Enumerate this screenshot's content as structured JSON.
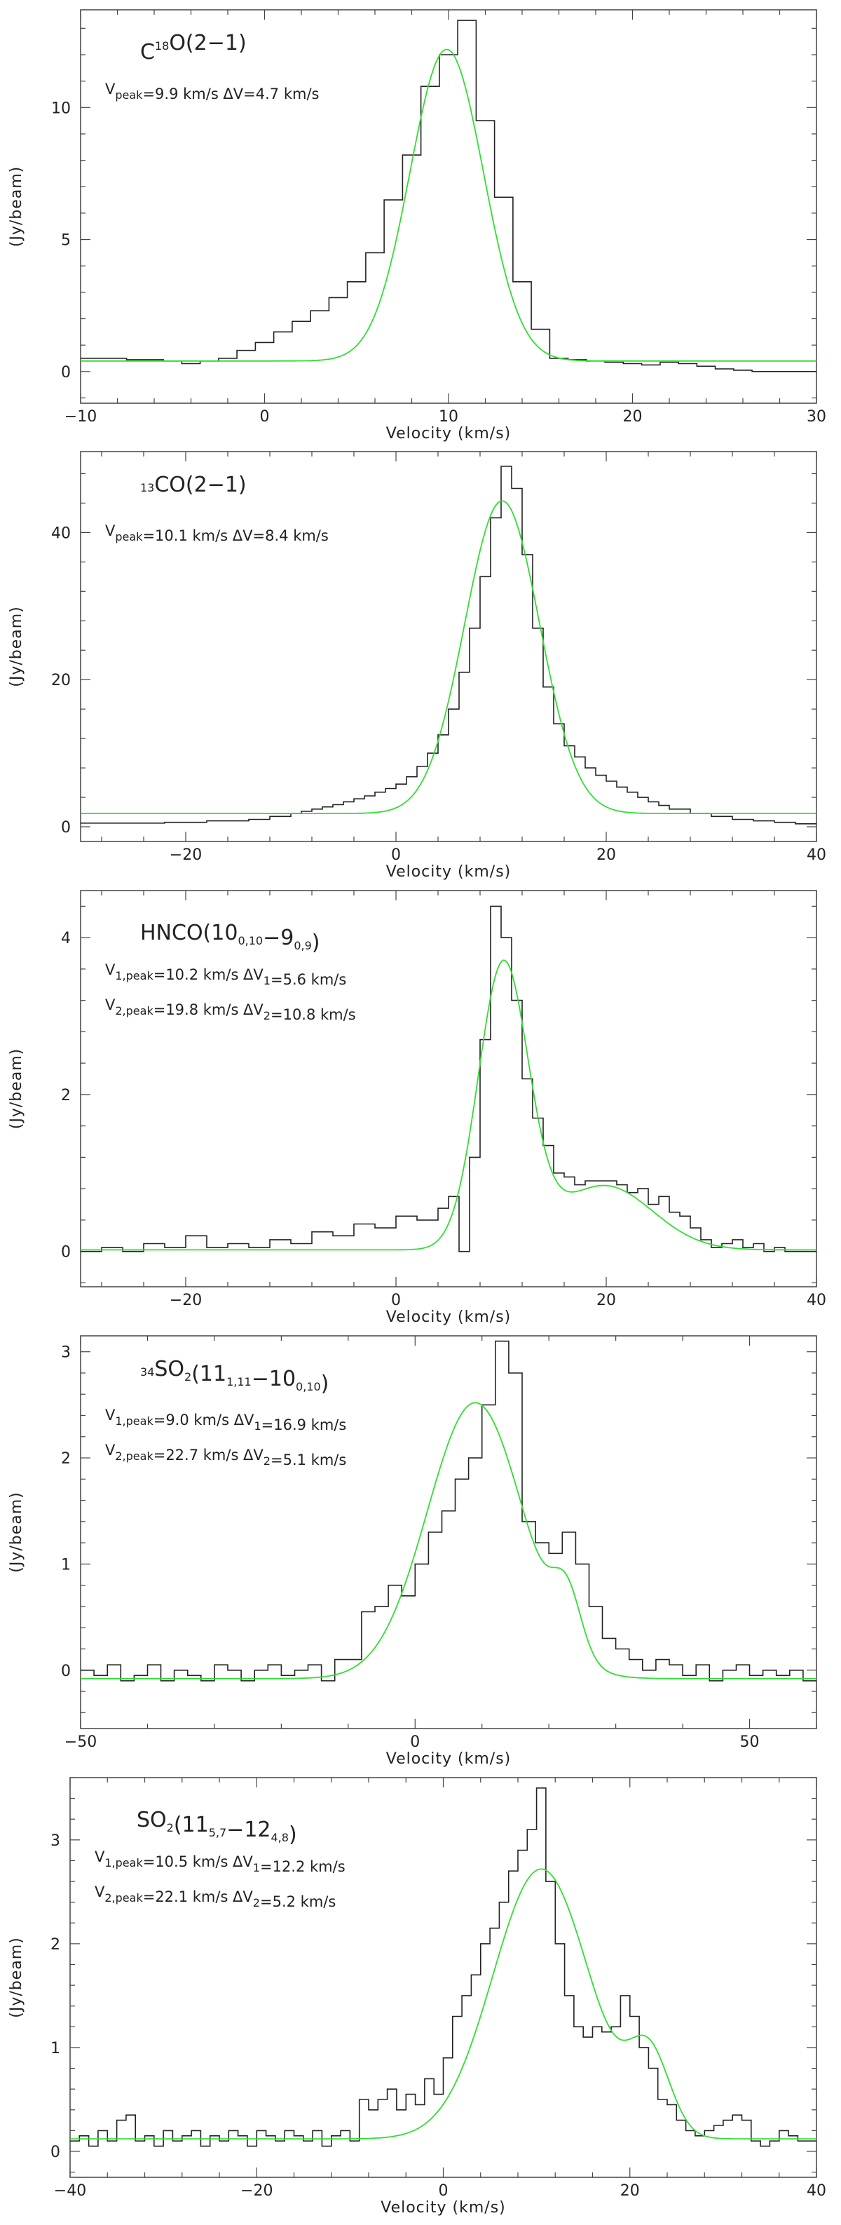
{
  "figure": {
    "xlabel": "Velocity (km/s)",
    "ylabel": "(Jy/beam)"
  },
  "chart_data": [
    {
      "type": "line",
      "title_parts": [
        [
          "",
          "C"
        ],
        [
          "sup",
          "18"
        ],
        [
          "",
          "O(2−1)"
        ]
      ],
      "params": [
        [
          [
            "",
            "V"
          ],
          [
            "sub",
            "peak"
          ],
          [
            "",
            "=9.9  km/s   ΔV=4.7  km/s"
          ]
        ]
      ],
      "xlim": [
        -10,
        30
      ],
      "ylim": [
        -1.2,
        13.7
      ],
      "xticks": [
        -10,
        0,
        10,
        20,
        30
      ],
      "yticks": [
        0,
        5,
        10
      ],
      "observed_step": {
        "x": [
          -10.5,
          -9.5,
          -8.5,
          -7.5,
          -6.5,
          -5.5,
          -4.5,
          -3.5,
          -2.5,
          -1.5,
          -0.5,
          0.5,
          1.5,
          2.5,
          3.5,
          4.5,
          5.5,
          6.5,
          7.5,
          8.5,
          9.5,
          10.5,
          11.5,
          12.5,
          13.5,
          14.5,
          15.5,
          16.5,
          17.5,
          18.5,
          19.5,
          20.5,
          21.5,
          22.5,
          23.5,
          24.5,
          25.5,
          26.5,
          27.5,
          28.5,
          29.5
        ],
        "y": [
          0.5,
          0.5,
          0.5,
          0.45,
          0.45,
          0.4,
          0.3,
          0.4,
          0.5,
          0.8,
          1.1,
          1.5,
          1.9,
          2.3,
          2.8,
          3.4,
          4.5,
          6.5,
          8.2,
          10.8,
          12.0,
          13.3,
          9.5,
          6.6,
          3.4,
          1.6,
          0.5,
          0.45,
          0.4,
          0.35,
          0.3,
          0.25,
          0.35,
          0.3,
          0.2,
          0.1,
          0.05,
          0.0,
          0.0,
          0.0,
          0.0
        ]
      },
      "fit": {
        "components": [
          {
            "amplitude": 11.8,
            "center": 9.9,
            "fwhm": 4.7
          }
        ],
        "baseline": 0.4
      }
    },
    {
      "type": "line",
      "title_parts": [
        [
          "sup",
          "13"
        ],
        [
          "",
          "CO(2−1)"
        ]
      ],
      "params": [
        [
          [
            "",
            "V"
          ],
          [
            "sub",
            "peak"
          ],
          [
            "",
            "=10.1  km/s   ΔV=8.4  km/s"
          ]
        ]
      ],
      "xlim": [
        -30,
        40
      ],
      "ylim": [
        -2,
        51
      ],
      "xticks": [
        -20,
        0,
        20,
        40
      ],
      "yticks": [
        0,
        20,
        40
      ],
      "observed_step": {
        "x": [
          -30,
          -26,
          -22,
          -18,
          -14,
          -12,
          -10,
          -9,
          -8,
          -7,
          -6,
          -5,
          -4,
          -3,
          -2,
          -1,
          0,
          1,
          2,
          3,
          4,
          5,
          6,
          7,
          8,
          9,
          10,
          11,
          12,
          13,
          14,
          15,
          16,
          17,
          18,
          19,
          20,
          21,
          22,
          23,
          24,
          25,
          26,
          28,
          30,
          32,
          34,
          36,
          38,
          40
        ],
        "y": [
          0.5,
          0.5,
          0.6,
          0.8,
          1.0,
          1.4,
          1.8,
          2.1,
          2.4,
          2.7,
          3.0,
          3.4,
          3.8,
          4.2,
          4.7,
          5.2,
          5.8,
          6.8,
          8.2,
          10.0,
          12.5,
          16.0,
          21.0,
          27.0,
          34.0,
          42.0,
          49.0,
          46.0,
          37.0,
          27.0,
          19.0,
          14.0,
          11.0,
          9.5,
          8.0,
          7.0,
          6.2,
          5.4,
          4.7,
          4.0,
          3.4,
          2.9,
          2.4,
          1.8,
          1.4,
          1.0,
          0.8,
          0.6,
          0.4,
          0.3
        ]
      },
      "fit": {
        "components": [
          {
            "amplitude": 42.5,
            "center": 10.1,
            "fwhm": 8.4
          }
        ],
        "baseline": 1.8
      }
    },
    {
      "type": "line",
      "title_parts": [
        [
          "",
          "HNCO(10"
        ],
        [
          "sub",
          "0,10"
        ],
        [
          "",
          "−9"
        ],
        [
          "sub",
          "0,9"
        ],
        [
          "",
          ")"
        ]
      ],
      "params": [
        [
          [
            "",
            "V"
          ],
          [
            "sub",
            "1,peak"
          ],
          [
            "",
            "=10.2  km/s   ΔV"
          ],
          [
            "sub",
            "1"
          ],
          [
            "",
            "=5.6  km/s"
          ]
        ],
        [
          [
            "",
            "V"
          ],
          [
            "sub",
            "2,peak"
          ],
          [
            "",
            "=19.8  km/s   ΔV"
          ],
          [
            "sub",
            "2"
          ],
          [
            "",
            "=10.8  km/s"
          ]
        ]
      ],
      "xlim": [
        -30,
        40
      ],
      "ylim": [
        -0.45,
        4.6
      ],
      "xticks": [
        -20,
        0,
        20,
        40
      ],
      "yticks": [
        0,
        2,
        4
      ],
      "observed_step": {
        "x": [
          -30,
          -28,
          -26,
          -24,
          -22,
          -20,
          -18,
          -16,
          -14,
          -12,
          -10,
          -8,
          -6,
          -4,
          -2,
          0,
          2,
          4,
          5,
          6,
          7,
          8,
          9,
          10,
          11,
          12,
          13,
          14,
          15,
          16,
          17,
          18,
          19,
          20,
          21,
          22,
          23,
          24,
          25,
          26,
          27,
          28,
          29,
          30,
          31,
          32,
          33,
          34,
          35,
          36,
          37,
          38,
          39
        ],
        "y": [
          0.0,
          0.05,
          0.0,
          0.1,
          0.05,
          0.2,
          0.05,
          0.1,
          0.05,
          0.15,
          0.1,
          0.25,
          0.2,
          0.35,
          0.3,
          0.45,
          0.4,
          0.55,
          0.7,
          0.0,
          1.2,
          2.7,
          4.4,
          4.0,
          3.2,
          2.2,
          1.7,
          1.35,
          1.0,
          0.95,
          0.85,
          0.9,
          0.9,
          0.9,
          0.85,
          0.75,
          0.8,
          0.6,
          0.7,
          0.5,
          0.45,
          0.3,
          0.15,
          0.05,
          0.1,
          0.15,
          0.05,
          0.1,
          0.0,
          0.05,
          0.0,
          0.0,
          0.0
        ]
      },
      "fit": {
        "components": [
          {
            "amplitude": 3.6,
            "center": 10.2,
            "fwhm": 5.6
          },
          {
            "amplitude": 0.82,
            "center": 19.8,
            "fwhm": 10.8
          }
        ],
        "baseline": 0.02
      }
    },
    {
      "type": "line",
      "title_parts": [
        [
          "sup",
          "34"
        ],
        [
          "",
          "SO"
        ],
        [
          "sub",
          "2"
        ],
        [
          "",
          "(11"
        ],
        [
          "sub",
          "1,11"
        ],
        [
          "",
          "−10"
        ],
        [
          "sub",
          "0,10"
        ],
        [
          "",
          ")"
        ]
      ],
      "params": [
        [
          [
            "",
            "V"
          ],
          [
            "sub",
            "1,peak"
          ],
          [
            "",
            "=9.0  km/s   ΔV"
          ],
          [
            "sub",
            "1"
          ],
          [
            "",
            "=16.9  km/s"
          ]
        ],
        [
          [
            "",
            "V"
          ],
          [
            "sub",
            "2,peak"
          ],
          [
            "",
            "=22.7  km/s   ΔV"
          ],
          [
            "sub",
            "2"
          ],
          [
            "",
            "=5.1  km/s"
          ]
        ]
      ],
      "xlim": [
        -50,
        60
      ],
      "ylim": [
        -0.55,
        3.15
      ],
      "xticks": [
        -50,
        0,
        50
      ],
      "yticks": [
        0,
        1,
        2,
        3
      ],
      "observed_step": {
        "x": [
          -50,
          -48,
          -46,
          -44,
          -42,
          -40,
          -38,
          -36,
          -34,
          -32,
          -30,
          -28,
          -26,
          -24,
          -22,
          -20,
          -18,
          -16,
          -14,
          -12,
          -10,
          -8,
          -6,
          -4,
          -2,
          0,
          2,
          4,
          6,
          8,
          10,
          12,
          14,
          16,
          18,
          20,
          22,
          24,
          26,
          28,
          30,
          32,
          34,
          36,
          38,
          40,
          42,
          44,
          46,
          48,
          50,
          52,
          54,
          56,
          58
        ],
        "y": [
          0.0,
          -0.05,
          0.05,
          -0.1,
          -0.05,
          0.05,
          -0.1,
          0.0,
          -0.05,
          -0.1,
          0.05,
          0.0,
          -0.1,
          0.0,
          0.05,
          -0.05,
          0.0,
          0.05,
          -0.1,
          0.1,
          0.1,
          0.55,
          0.6,
          0.8,
          0.7,
          1.0,
          1.3,
          1.5,
          1.8,
          2.0,
          2.5,
          3.1,
          2.8,
          1.4,
          1.2,
          1.1,
          1.3,
          1.0,
          0.6,
          0.3,
          0.2,
          0.1,
          0.0,
          0.1,
          0.05,
          -0.05,
          0.05,
          -0.1,
          0.0,
          0.05,
          -0.05,
          0.0,
          -0.05,
          0.0,
          -0.1
        ]
      },
      "fit": {
        "components": [
          {
            "amplitude": 2.6,
            "center": 9.0,
            "fwhm": 16.9
          },
          {
            "amplitude": 0.55,
            "center": 22.7,
            "fwhm": 5.1
          }
        ],
        "baseline": -0.08
      }
    },
    {
      "type": "line",
      "title_parts": [
        [
          "",
          "SO"
        ],
        [
          "sub",
          "2"
        ],
        [
          "",
          "(11"
        ],
        [
          "sub",
          "5,7"
        ],
        [
          "",
          "−12"
        ],
        [
          "sub",
          "4,8"
        ],
        [
          "",
          ")"
        ]
      ],
      "params": [
        [
          [
            "",
            "V"
          ],
          [
            "sub",
            "1,peak"
          ],
          [
            "",
            "=10.5  km/s   ΔV"
          ],
          [
            "sub",
            "1"
          ],
          [
            "",
            "=12.2  km/s"
          ]
        ],
        [
          [
            "",
            "V"
          ],
          [
            "sub",
            "2,peak"
          ],
          [
            "",
            "=22.1  km/s   ΔV"
          ],
          [
            "sub",
            "2"
          ],
          [
            "",
            "=5.2  km/s"
          ]
        ]
      ],
      "xlim": [
        -40,
        40
      ],
      "ylim": [
        -0.25,
        3.6
      ],
      "xticks": [
        -40,
        -20,
        0,
        20,
        40
      ],
      "yticks": [
        0,
        1,
        2,
        3
      ],
      "observed_step": {
        "x": [
          -40,
          -39,
          -38,
          -37,
          -36,
          -35,
          -34,
          -33,
          -32,
          -31,
          -30,
          -29,
          -28,
          -27,
          -26,
          -25,
          -24,
          -23,
          -22,
          -21,
          -20,
          -19,
          -18,
          -17,
          -16,
          -15,
          -14,
          -13,
          -12,
          -11,
          -10,
          -9,
          -8,
          -7,
          -6,
          -5,
          -4,
          -3,
          -2,
          -1,
          0,
          1,
          2,
          3,
          4,
          5,
          6,
          7,
          8,
          9,
          10,
          11,
          12,
          13,
          14,
          15,
          16,
          17,
          18,
          19,
          20,
          21,
          22,
          23,
          24,
          25,
          26,
          27,
          28,
          29,
          30,
          31,
          32,
          33,
          34,
          35,
          36,
          37,
          38,
          39
        ],
        "y": [
          0.1,
          0.15,
          0.05,
          0.2,
          0.1,
          0.3,
          0.35,
          0.1,
          0.15,
          0.05,
          0.2,
          0.1,
          0.15,
          0.2,
          0.05,
          0.15,
          0.1,
          0.2,
          0.15,
          0.05,
          0.2,
          0.15,
          0.1,
          0.2,
          0.15,
          0.1,
          0.2,
          0.05,
          0.15,
          0.2,
          0.1,
          0.5,
          0.4,
          0.5,
          0.6,
          0.4,
          0.55,
          0.45,
          0.7,
          0.55,
          0.9,
          1.3,
          1.5,
          1.7,
          2.0,
          2.15,
          2.4,
          2.7,
          2.9,
          3.1,
          3.5,
          2.6,
          2.0,
          1.5,
          1.2,
          1.1,
          1.2,
          1.15,
          1.2,
          1.5,
          1.3,
          1.0,
          0.8,
          0.5,
          0.45,
          0.3,
          0.2,
          0.15,
          0.2,
          0.25,
          0.3,
          0.35,
          0.3,
          0.1,
          0.05,
          0.1,
          0.2,
          0.15,
          0.1,
          0.1
        ]
      },
      "fit": {
        "components": [
          {
            "amplitude": 2.6,
            "center": 10.5,
            "fwhm": 12.2
          },
          {
            "amplitude": 0.75,
            "center": 22.1,
            "fwhm": 5.2
          }
        ],
        "baseline": 0.12
      }
    }
  ],
  "colors": {
    "observed": "#222222",
    "fit": "#33dd33",
    "axis": "#444444"
  }
}
